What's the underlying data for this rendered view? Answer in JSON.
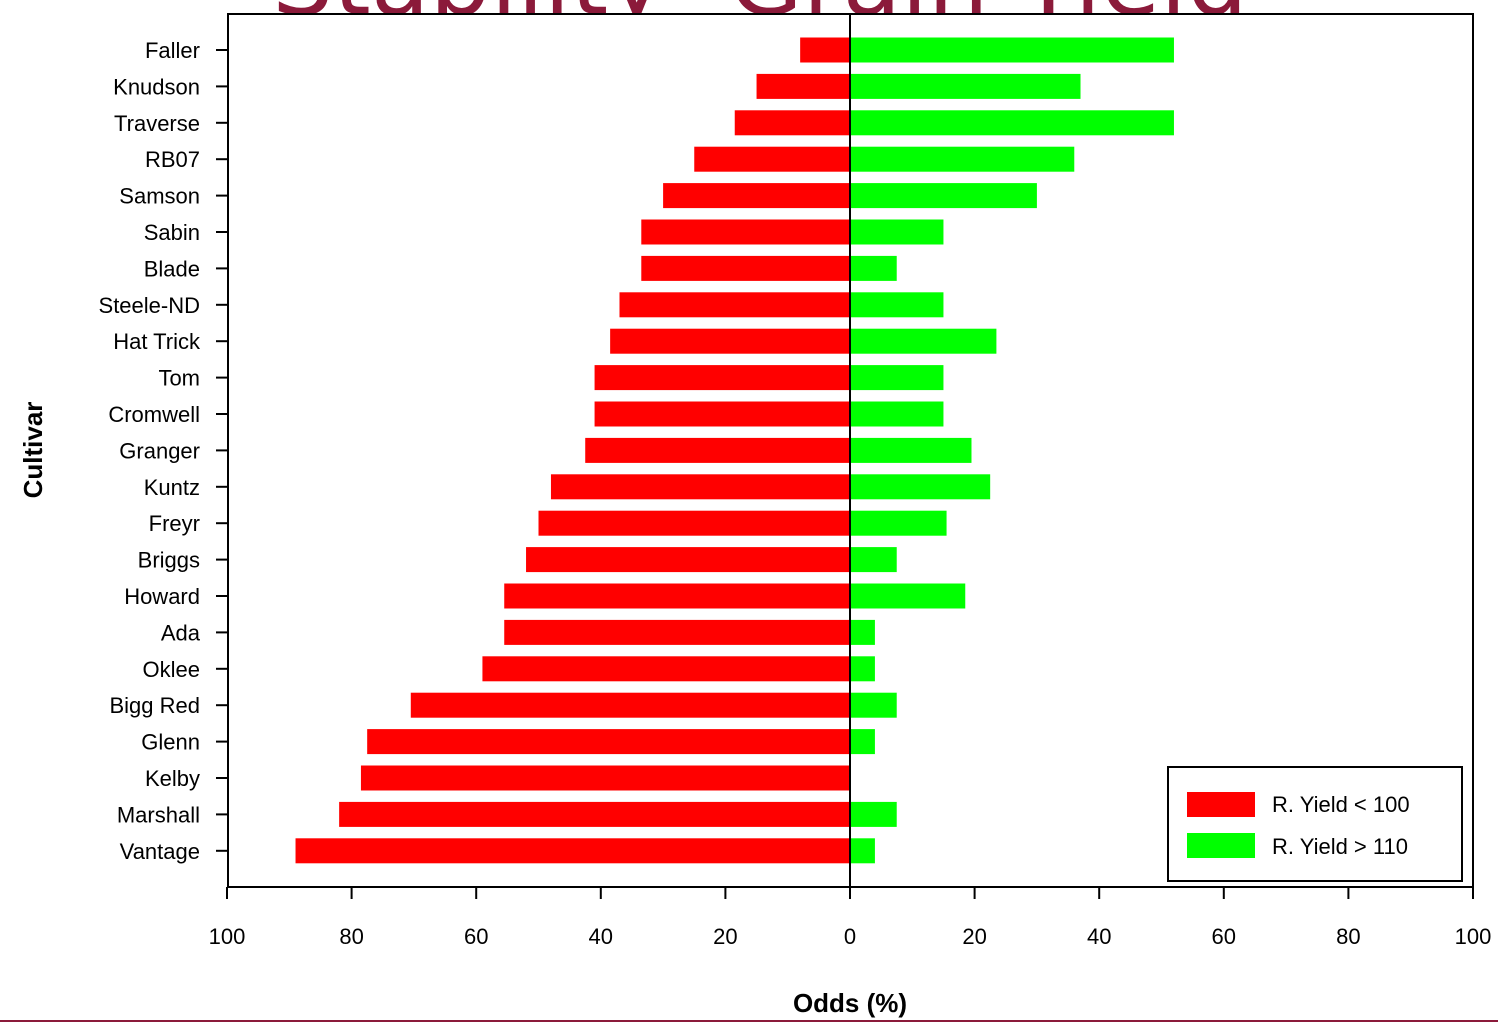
{
  "chart_data": {
    "type": "bar",
    "orientation": "horizontal-diverging",
    "title": "Stability- Grain Yield",
    "xlabel": "Odds (%)",
    "ylabel": "Cultivar",
    "xlim": [
      -100,
      100
    ],
    "x_ticks": [
      100,
      80,
      60,
      40,
      20,
      0,
      20,
      40,
      60,
      80,
      100
    ],
    "grid": false,
    "legend_position": "bottom-right",
    "categories": [
      "Faller",
      "Knudson",
      "Traverse",
      "RB07",
      "Samson",
      "Sabin",
      "Blade",
      "Steele-ND",
      "Hat Trick",
      "Tom",
      "Cromwell",
      "Granger",
      "Kuntz",
      "Freyr",
      "Briggs",
      "Howard",
      "Ada",
      "Oklee",
      "Bigg Red",
      "Glenn",
      "Kelby",
      "Marshall",
      "Vantage"
    ],
    "series": [
      {
        "name": "R. Yield < 100",
        "color": "#ff0000",
        "direction": "left",
        "values": [
          8,
          15,
          18.5,
          25,
          30,
          33.5,
          33.5,
          37,
          38.5,
          41,
          41,
          42.5,
          48,
          50,
          52,
          55.5,
          55.5,
          59,
          70.5,
          77.5,
          78.5,
          82,
          89
        ]
      },
      {
        "name": "R. Yield > 110",
        "color": "#00ff00",
        "direction": "right",
        "values": [
          52,
          37,
          52,
          36,
          30,
          15,
          7.5,
          15,
          23.5,
          15,
          15,
          19.5,
          22.5,
          15.5,
          7.5,
          18.5,
          4,
          4,
          7.5,
          4,
          0,
          7.5,
          4
        ]
      }
    ]
  }
}
